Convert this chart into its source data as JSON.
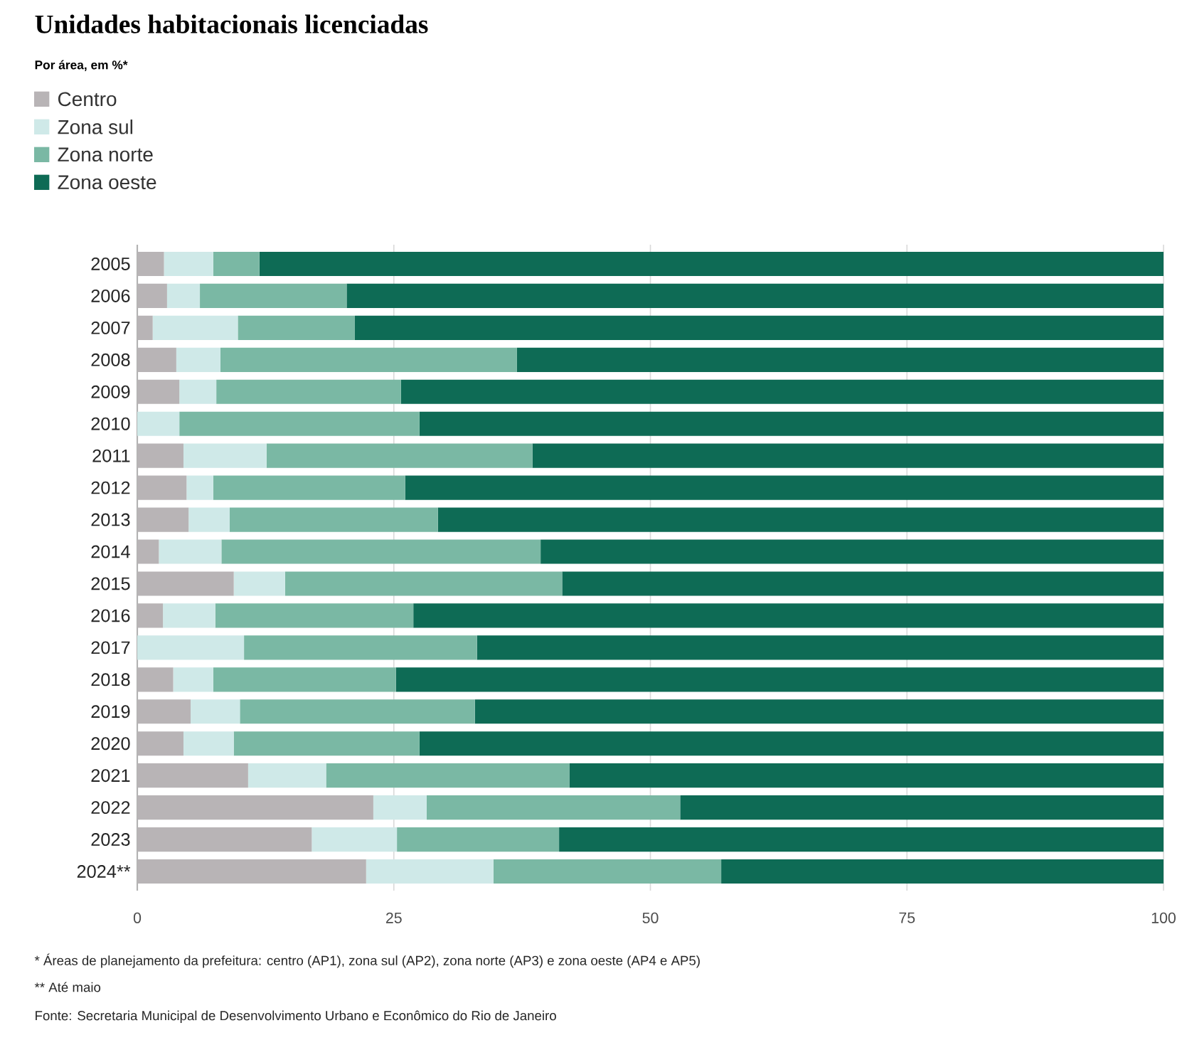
{
  "chart_data": {
    "type": "bar",
    "orientation": "horizontal",
    "stacked": true,
    "title": "Unidades habitacionais licenciadas",
    "subtitle": "Por área, em %*",
    "categories": [
      "2005",
      "2006",
      "2007",
      "2008",
      "2009",
      "2010",
      "2011",
      "2012",
      "2013",
      "2014",
      "2015",
      "2016",
      "2017",
      "2018",
      "2019",
      "2020",
      "2021",
      "2022",
      "2023",
      "2024**"
    ],
    "series": [
      {
        "name": "Centro",
        "color": "#b8b4b6",
        "values": [
          2.6,
          2.9,
          1.5,
          3.8,
          4.1,
          0,
          4.5,
          4.8,
          5.0,
          2.1,
          9.4,
          2.5,
          0,
          3.5,
          5.2,
          4.5,
          10.8,
          23.0,
          17.0,
          22.3
        ]
      },
      {
        "name": "Zona sul",
        "color": "#cfe9e8",
        "values": [
          4.8,
          3.2,
          8.3,
          4.3,
          3.6,
          4.1,
          8.1,
          2.6,
          4.0,
          6.1,
          5.0,
          5.1,
          10.4,
          3.9,
          4.8,
          4.9,
          7.6,
          5.2,
          8.3,
          12.4
        ]
      },
      {
        "name": "Zona norte",
        "color": "#7ab8a4",
        "values": [
          4.5,
          14.3,
          11.4,
          28.9,
          18.0,
          23.4,
          25.9,
          18.7,
          20.3,
          31.1,
          27.0,
          19.3,
          22.7,
          17.8,
          22.9,
          18.1,
          23.7,
          24.7,
          15.8,
          22.2
        ]
      },
      {
        "name": "Zona oeste",
        "color": "#0e6b55",
        "values": [
          88.1,
          79.6,
          78.8,
          63.0,
          74.3,
          72.5,
          61.5,
          73.9,
          70.7,
          60.7,
          58.6,
          73.1,
          66.9,
          74.8,
          67.1,
          72.5,
          57.9,
          47.1,
          58.9,
          43.1
        ]
      }
    ],
    "xlim": [
      0,
      100
    ],
    "xticks": [
      0,
      25,
      50,
      75,
      100
    ],
    "grid": "x",
    "legend": "top left",
    "annotations": [
      "* Áreas de planejamento da prefeitura: centro (AP1), zona sul (AP2), zona norte (AP3) e zona oeste (AP4 e AP5)",
      "** Até maio",
      "Fonte: Secretaria Municipal de Desenvolvimento Urbano e Econômico do Rio de Janeiro"
    ]
  }
}
